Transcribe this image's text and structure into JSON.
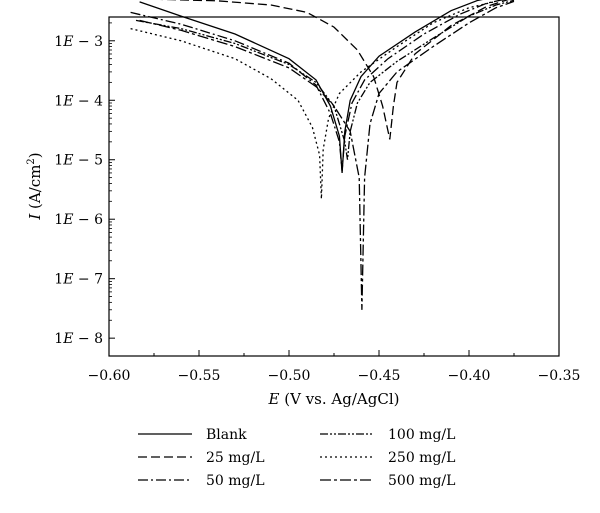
{
  "chart_data": {
    "type": "line",
    "xlabel": {
      "symbol": "E",
      "rest": " (V vs. Ag/AgCl)"
    },
    "ylabel": {
      "symbol": "I",
      "rest": " (A/cm",
      "sup": "2",
      "close": ")"
    },
    "xlim": [
      -0.6,
      -0.35
    ],
    "ylim_log10": [
      -8.3,
      -2.6
    ],
    "y_scale": "log",
    "x_ticks": [
      {
        "value": -0.6,
        "label": "−0.60"
      },
      {
        "value": -0.55,
        "label": "−0.55"
      },
      {
        "value": -0.5,
        "label": "−0.50"
      },
      {
        "value": -0.45,
        "label": "−0.45"
      },
      {
        "value": -0.4,
        "label": "−0.40"
      },
      {
        "value": -0.35,
        "label": "−0.35"
      }
    ],
    "y_ticks": [
      {
        "exp": -3,
        "mant": "1",
        "e": "E",
        "rest": " − 3"
      },
      {
        "exp": -4,
        "mant": "1",
        "e": "E",
        "rest": " − 4"
      },
      {
        "exp": -5,
        "mant": "1",
        "e": "E",
        "rest": " − 5"
      },
      {
        "exp": -6,
        "mant": "1",
        "e": "E",
        "rest": " − 6"
      },
      {
        "exp": -7,
        "mant": "1",
        "e": "E",
        "rest": " − 7"
      },
      {
        "exp": -8,
        "mant": "1",
        "e": "E",
        "rest": " − 8"
      }
    ],
    "legend_placement": "below",
    "series": [
      {
        "name": "Blank",
        "dash": "",
        "color": "#000000",
        "points": [
          [
            -0.583,
            0.0045
          ],
          [
            -0.56,
            0.0026
          ],
          [
            -0.53,
            0.0013
          ],
          [
            -0.5,
            0.0005
          ],
          [
            -0.485,
            0.00022
          ],
          [
            -0.477,
            8e-05
          ],
          [
            -0.472,
            2.5e-05
          ],
          [
            -0.4705,
            6e-06
          ],
          [
            -0.469,
            3e-05
          ],
          [
            -0.466,
            0.0001
          ],
          [
            -0.46,
            0.00025
          ],
          [
            -0.45,
            0.00055
          ],
          [
            -0.43,
            0.0014
          ],
          [
            -0.41,
            0.0032
          ],
          [
            -0.395,
            0.0048
          ],
          [
            -0.385,
            0.0055
          ]
        ]
      },
      {
        "name": "25 mg/L",
        "dash": "9 4",
        "color": "#000000",
        "points": [
          [
            -0.575,
            0.005
          ],
          [
            -0.54,
            0.0047
          ],
          [
            -0.51,
            0.004
          ],
          [
            -0.49,
            0.003
          ],
          [
            -0.475,
            0.0017
          ],
          [
            -0.462,
            0.0007
          ],
          [
            -0.453,
            0.00025
          ],
          [
            -0.448,
            8e-05
          ],
          [
            -0.444,
            2.2e-05
          ],
          [
            -0.442,
            8e-05
          ],
          [
            -0.44,
            0.0002
          ],
          [
            -0.43,
            0.0006
          ],
          [
            -0.41,
            0.0018
          ],
          [
            -0.39,
            0.0038
          ],
          [
            -0.375,
            0.0053
          ],
          [
            -0.365,
            0.0058
          ]
        ]
      },
      {
        "name": "50 mg/L",
        "dash": "10 3 2 3",
        "color": "#000000",
        "points": [
          [
            -0.588,
            0.003
          ],
          [
            -0.56,
            0.0019
          ],
          [
            -0.53,
            0.001
          ],
          [
            -0.5,
            0.00042
          ],
          [
            -0.485,
            0.00018
          ],
          [
            -0.477,
            6e-05
          ],
          [
            -0.472,
            2e-05
          ],
          [
            -0.4705,
            6.5e-06
          ],
          [
            -0.469,
            2.5e-05
          ],
          [
            -0.465,
            9e-05
          ],
          [
            -0.458,
            0.00022
          ],
          [
            -0.445,
            0.0005
          ],
          [
            -0.425,
            0.0013
          ],
          [
            -0.405,
            0.0028
          ],
          [
            -0.39,
            0.0043
          ],
          [
            -0.38,
            0.005
          ]
        ]
      },
      {
        "name": "100 mg/L",
        "dash": "8 2 2 2 2 2",
        "color": "#000000",
        "points": [
          [
            -0.585,
            0.0022
          ],
          [
            -0.56,
            0.0016
          ],
          [
            -0.53,
            0.0009
          ],
          [
            -0.5,
            0.0004
          ],
          [
            -0.485,
            0.0002
          ],
          [
            -0.475,
            8e-05
          ],
          [
            -0.469,
            2e-05
          ],
          [
            -0.4675,
            1e-05
          ],
          [
            -0.466,
            3e-05
          ],
          [
            -0.462,
            9e-05
          ],
          [
            -0.455,
            0.0002
          ],
          [
            -0.44,
            0.00045
          ],
          [
            -0.42,
            0.0011
          ],
          [
            -0.4,
            0.0026
          ],
          [
            -0.385,
            0.004
          ],
          [
            -0.375,
            0.0048
          ]
        ]
      },
      {
        "name": "250 mg/L",
        "dash": "2 3",
        "color": "#000000",
        "points": [
          [
            -0.588,
            0.0016
          ],
          [
            -0.56,
            0.001
          ],
          [
            -0.53,
            0.0005
          ],
          [
            -0.51,
            0.00023
          ],
          [
            -0.495,
            0.0001
          ],
          [
            -0.487,
            3.5e-05
          ],
          [
            -0.483,
            1.2e-05
          ],
          [
            -0.482,
            2.2e-06
          ],
          [
            -0.481,
            1.5e-05
          ],
          [
            -0.478,
            5e-05
          ],
          [
            -0.472,
            0.00013
          ],
          [
            -0.46,
            0.0003
          ],
          [
            -0.44,
            0.0008
          ],
          [
            -0.42,
            0.002
          ],
          [
            -0.4,
            0.0036
          ],
          [
            -0.385,
            0.0046
          ]
        ]
      },
      {
        "name": "500 mg/L",
        "dash": "11 3 3 3",
        "color": "#000000",
        "points": [
          [
            -0.583,
            0.0022
          ],
          [
            -0.56,
            0.0015
          ],
          [
            -0.53,
            0.0008
          ],
          [
            -0.5,
            0.00035
          ],
          [
            -0.485,
            0.00017
          ],
          [
            -0.475,
            8e-05
          ],
          [
            -0.466,
            3e-05
          ],
          [
            -0.461,
            5e-06
          ],
          [
            -0.4595,
            3e-08
          ],
          [
            -0.458,
            5e-06
          ],
          [
            -0.455,
            4e-05
          ],
          [
            -0.45,
            0.00013
          ],
          [
            -0.44,
            0.0003
          ],
          [
            -0.42,
            0.0008
          ],
          [
            -0.4,
            0.002
          ],
          [
            -0.385,
            0.0036
          ],
          [
            -0.375,
            0.0046
          ]
        ]
      }
    ]
  }
}
